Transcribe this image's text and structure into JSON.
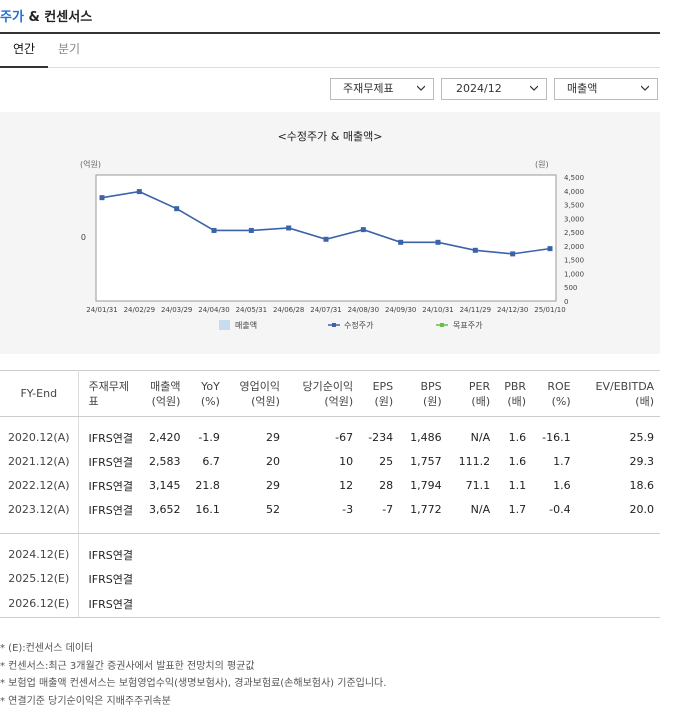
{
  "header": {
    "title_accent": "주가",
    "title_rest": " & 컨센서스"
  },
  "tabs": [
    {
      "label": "연간",
      "active": true
    },
    {
      "label": "분기",
      "active": false
    }
  ],
  "filters": {
    "statement": "주재무제표",
    "period": "2024/12",
    "metric": "매출액"
  },
  "colors": {
    "line": "#3b63a8",
    "accent": "#1f6fd6",
    "bar": "#c9dcef",
    "target": "#6bbf45",
    "negative": "#e0352c"
  },
  "chart_data": {
    "type": "line",
    "title": "<수정주가 & 매출액>",
    "y_left_unit": "(억원)",
    "y_right_unit": "(원)",
    "y_left_ticks": [
      "0"
    ],
    "y_right_ticks": [
      4500,
      4000,
      3500,
      3000,
      2500,
      2000,
      1500,
      1000,
      500,
      0
    ],
    "y_right_tick_labels": [
      "4,500",
      "4,000",
      "3,500",
      "3,000",
      "2,500",
      "2,000",
      "1,500",
      "1,000",
      "500",
      "0"
    ],
    "ylim_right": [
      0,
      4500
    ],
    "categories": [
      "24/01/31",
      "24/02/29",
      "24/03/29",
      "24/04/30",
      "24/05/31",
      "24/06/28",
      "24/07/31",
      "24/08/30",
      "24/09/30",
      "24/10/31",
      "24/11/29",
      "24/12/30",
      "25/01/10"
    ],
    "series": [
      {
        "name": "수정주가",
        "values": [
          3750,
          3970,
          3350,
          2560,
          2560,
          2650,
          2240,
          2590,
          2130,
          2130,
          1840,
          1710,
          1900
        ]
      }
    ],
    "legend": [
      "매출액",
      "수정주가",
      "목표주가"
    ],
    "legend_placement": "bottom"
  },
  "table": {
    "headers": [
      {
        "l1": "FY-End",
        "l2": ""
      },
      {
        "l1": "주재무제표",
        "l2": ""
      },
      {
        "l1": "매출액",
        "l2": "(억원)"
      },
      {
        "l1": "YoY",
        "l2": "(%)"
      },
      {
        "l1": "영업이익",
        "l2": "(억원)"
      },
      {
        "l1": "당기순이익",
        "l2": "(억원)"
      },
      {
        "l1": "EPS",
        "l2": "(원)"
      },
      {
        "l1": "BPS",
        "l2": "(원)"
      },
      {
        "l1": "PER",
        "l2": "(배)"
      },
      {
        "l1": "PBR",
        "l2": "(배)"
      },
      {
        "l1": "ROE",
        "l2": "(%)"
      },
      {
        "l1": "EV/EBITDA",
        "l2": "(배)"
      }
    ],
    "actual_rows": [
      [
        "2020.12(A)",
        "IFRS연결",
        "2,420",
        "-1.9",
        "29",
        "-67",
        "-234",
        "1,486",
        "N/A",
        "1.6",
        "-16.1",
        "25.9"
      ],
      [
        "2021.12(A)",
        "IFRS연결",
        "2,583",
        "6.7",
        "20",
        "10",
        "25",
        "1,757",
        "111.2",
        "1.6",
        "1.7",
        "29.3"
      ],
      [
        "2022.12(A)",
        "IFRS연결",
        "3,145",
        "21.8",
        "29",
        "12",
        "28",
        "1,794",
        "71.1",
        "1.1",
        "1.6",
        "18.6"
      ],
      [
        "2023.12(A)",
        "IFRS연결",
        "3,652",
        "16.1",
        "52",
        "-3",
        "-7",
        "1,772",
        "N/A",
        "1.7",
        "-0.4",
        "20.0"
      ]
    ],
    "estimate_rows": [
      [
        "2024.12(E)",
        "IFRS연결"
      ],
      [
        "2025.12(E)",
        "IFRS연결"
      ],
      [
        "2026.12(E)",
        "IFRS연결"
      ]
    ]
  },
  "notes": [
    "* (E):컨센서스 데이터",
    "* 컨센서스:최근 3개월간 증권사에서 발표한 전망치의 평균값",
    "* 보험업 매출액 컨센서스는 보험영업수익(생명보험사), 경과보험료(손해보험사) 기준입니다.",
    "* 연결기준 당기순이익은 지배주주귀속분"
  ]
}
